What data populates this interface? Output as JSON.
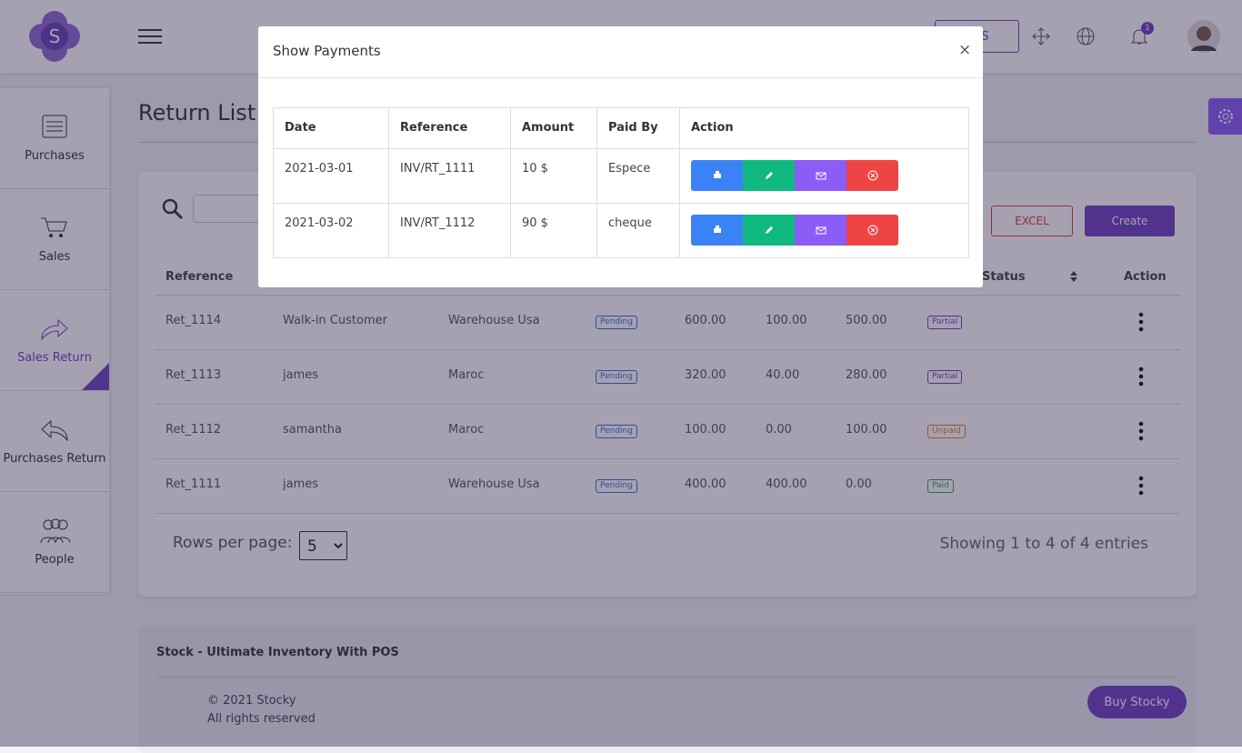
{
  "header": {
    "logo": "S",
    "pos_button": "POS",
    "notification_count": "1"
  },
  "sidebar": [
    "Purchases",
    "Sales",
    "Sales Return",
    "Purchases Return",
    "People"
  ],
  "page": {
    "title": "Return List",
    "excel_button": "EXCEL",
    "create_button": "Create",
    "columns": [
      "Reference",
      "Status",
      "Action"
    ],
    "rows": [
      [
        "Ret_1114",
        "Walk-in Customer",
        "Warehouse Usa",
        "Pending",
        "600.00",
        "100.00",
        "500.00",
        "Partial"
      ],
      [
        "Ret_1113",
        "james",
        "Maroc",
        "Pending",
        "320.00",
        "40.00",
        "280.00",
        "Partial"
      ],
      [
        "Ret_1112",
        "samantha",
        "Maroc",
        "Pending",
        "100.00",
        "0.00",
        "100.00",
        "Unpaid"
      ],
      [
        "Ret_1111",
        "james",
        "Warehouse Usa",
        "Pending",
        "400.00",
        "400.00",
        "0.00",
        "Paid"
      ]
    ],
    "status_colors": [
      "#6f42c1",
      "#6f42c1",
      "#e67e22",
      "#28a745"
    ],
    "rows_per_page_label": "Rows per page:",
    "rows_per_page": 5,
    "entries_info": "Showing 1 to 4 of 4 entries"
  },
  "footer": {
    "title": "Stock - Ultimate Inventory With POS",
    "copyright": "© 2021 Stocky",
    "rights": "All rights reserved",
    "buy_button": "Buy Stocky"
  },
  "modal": {
    "title": "Show Payments",
    "close": "×",
    "columns": [
      "Date",
      "Reference",
      "Amount",
      "Paid By",
      "Action"
    ],
    "rows": [
      [
        "2021-03-01",
        "INV/RT_1111",
        "10 $",
        "Espece"
      ],
      [
        "2021-03-02",
        "INV/RT_1112",
        "90 $",
        "cheque"
      ]
    ]
  }
}
